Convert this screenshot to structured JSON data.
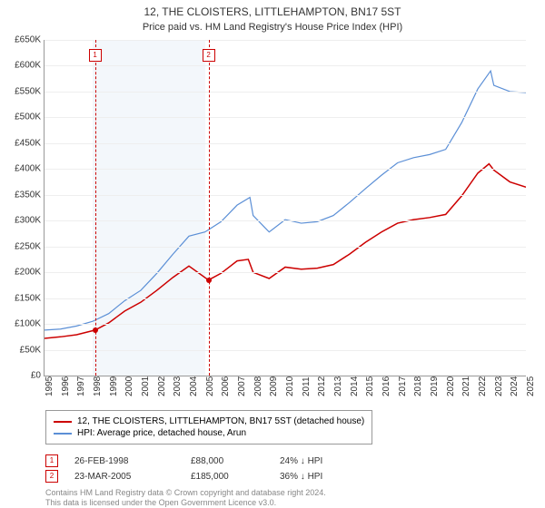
{
  "title": "12, THE CLOISTERS, LITTLEHAMPTON, BN17 5ST",
  "subtitle": "Price paid vs. HM Land Registry's House Price Index (HPI)",
  "chart": {
    "type": "line",
    "background_color": "#ffffff",
    "grid_color": "#eeeeee",
    "axis_color": "#999999",
    "ylim": [
      0,
      650000
    ],
    "ytick_step": 50000,
    "ytick_labels": [
      "£0",
      "£50K",
      "£100K",
      "£150K",
      "£200K",
      "£250K",
      "£300K",
      "£350K",
      "£400K",
      "£450K",
      "£500K",
      "£550K",
      "£600K",
      "£650K"
    ],
    "xlim": [
      1995,
      2025
    ],
    "xticks": [
      1995,
      1996,
      1997,
      1998,
      1999,
      2000,
      2001,
      2002,
      2003,
      2004,
      2005,
      2006,
      2007,
      2008,
      2009,
      2010,
      2011,
      2012,
      2013,
      2014,
      2015,
      2016,
      2017,
      2018,
      2019,
      2020,
      2021,
      2022,
      2023,
      2024,
      2025
    ],
    "shade_band": {
      "start": 1998,
      "end": 2005,
      "color": "#e8eff7"
    },
    "markers": [
      {
        "label": "1",
        "year": 1998.15,
        "box_y": 620000
      },
      {
        "label": "2",
        "year": 2005.22,
        "box_y": 620000
      }
    ],
    "series": [
      {
        "name": "property",
        "label": "12, THE CLOISTERS, LITTLEHAMPTON, BN17 5ST (detached house)",
        "color": "#cc0000",
        "line_width": 1.5,
        "points": [
          [
            1995,
            72000
          ],
          [
            1996,
            75000
          ],
          [
            1997,
            79000
          ],
          [
            1998.15,
            88000
          ],
          [
            1999,
            102000
          ],
          [
            2000,
            125000
          ],
          [
            2001,
            142000
          ],
          [
            2002,
            165000
          ],
          [
            2003,
            190000
          ],
          [
            2004,
            212000
          ],
          [
            2005.22,
            185000
          ],
          [
            2006,
            198000
          ],
          [
            2007,
            222000
          ],
          [
            2007.7,
            225000
          ],
          [
            2008,
            200000
          ],
          [
            2009,
            188000
          ],
          [
            2010,
            210000
          ],
          [
            2011,
            206000
          ],
          [
            2012,
            208000
          ],
          [
            2013,
            215000
          ],
          [
            2014,
            235000
          ],
          [
            2015,
            258000
          ],
          [
            2016,
            278000
          ],
          [
            2017,
            295000
          ],
          [
            2018,
            302000
          ],
          [
            2019,
            306000
          ],
          [
            2020,
            312000
          ],
          [
            2021,
            348000
          ],
          [
            2022,
            392000
          ],
          [
            2022.7,
            410000
          ],
          [
            2023,
            398000
          ],
          [
            2024,
            375000
          ],
          [
            2025,
            365000
          ]
        ],
        "sale_dots": [
          {
            "x": 1998.15,
            "y": 88000
          },
          {
            "x": 2005.22,
            "y": 185000
          }
        ]
      },
      {
        "name": "hpi",
        "label": "HPI: Average price, detached house, Arun",
        "color": "#5b8fd6",
        "line_width": 1.2,
        "points": [
          [
            1995,
            88000
          ],
          [
            1996,
            90000
          ],
          [
            1997,
            96000
          ],
          [
            1998,
            105000
          ],
          [
            1999,
            120000
          ],
          [
            2000,
            145000
          ],
          [
            2001,
            165000
          ],
          [
            2002,
            198000
          ],
          [
            2003,
            235000
          ],
          [
            2004,
            270000
          ],
          [
            2005,
            278000
          ],
          [
            2006,
            298000
          ],
          [
            2007,
            330000
          ],
          [
            2007.8,
            345000
          ],
          [
            2008,
            310000
          ],
          [
            2009,
            278000
          ],
          [
            2010,
            302000
          ],
          [
            2011,
            295000
          ],
          [
            2012,
            298000
          ],
          [
            2013,
            310000
          ],
          [
            2014,
            335000
          ],
          [
            2015,
            362000
          ],
          [
            2016,
            388000
          ],
          [
            2017,
            412000
          ],
          [
            2018,
            422000
          ],
          [
            2019,
            428000
          ],
          [
            2020,
            438000
          ],
          [
            2021,
            490000
          ],
          [
            2022,
            555000
          ],
          [
            2022.8,
            590000
          ],
          [
            2023,
            562000
          ],
          [
            2024,
            550000
          ],
          [
            2025,
            548000
          ]
        ]
      }
    ]
  },
  "legend": {
    "items": [
      {
        "color": "#cc0000",
        "label": "12, THE CLOISTERS, LITTLEHAMPTON, BN17 5ST (detached house)"
      },
      {
        "color": "#5b8fd6",
        "label": "HPI: Average price, detached house, Arun"
      }
    ]
  },
  "events": [
    {
      "num": "1",
      "date": "26-FEB-1998",
      "price": "£88,000",
      "note": "24% ↓ HPI"
    },
    {
      "num": "2",
      "date": "23-MAR-2005",
      "price": "£185,000",
      "note": "36% ↓ HPI"
    }
  ],
  "attribution": {
    "line1": "Contains HM Land Registry data © Crown copyright and database right 2024.",
    "line2": "This data is licensed under the Open Government Licence v3.0."
  },
  "fonts": {
    "title_size": 12,
    "axis_size": 10,
    "legend_size": 10
  }
}
